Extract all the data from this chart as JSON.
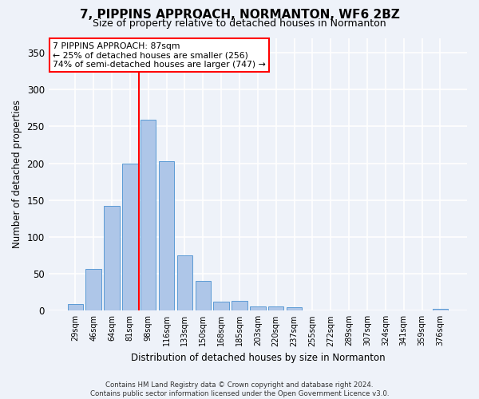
{
  "title": "7, PIPPINS APPROACH, NORMANTON, WF6 2BZ",
  "subtitle": "Size of property relative to detached houses in Normanton",
  "xlabel": "Distribution of detached houses by size in Normanton",
  "ylabel": "Number of detached properties",
  "categories": [
    "29sqm",
    "46sqm",
    "64sqm",
    "81sqm",
    "98sqm",
    "116sqm",
    "133sqm",
    "150sqm",
    "168sqm",
    "185sqm",
    "203sqm",
    "220sqm",
    "237sqm",
    "255sqm",
    "272sqm",
    "289sqm",
    "307sqm",
    "324sqm",
    "341sqm",
    "359sqm",
    "376sqm"
  ],
  "values": [
    9,
    57,
    142,
    199,
    259,
    203,
    75,
    40,
    12,
    13,
    6,
    6,
    5,
    0,
    0,
    0,
    0,
    0,
    0,
    0,
    3
  ],
  "bar_color": "#aec6e8",
  "bar_edge_color": "#5b9bd5",
  "vline_index": 3,
  "vline_color": "red",
  "annotation_title": "7 PIPPINS APPROACH: 87sqm",
  "annotation_line1": "← 25% of detached houses are smaller (256)",
  "annotation_line2": "74% of semi-detached houses are larger (747) →",
  "annotation_box_color": "white",
  "annotation_box_edge": "red",
  "footer_line1": "Contains HM Land Registry data © Crown copyright and database right 2024.",
  "footer_line2": "Contains public sector information licensed under the Open Government Licence v3.0.",
  "bg_color": "#eef2f9",
  "grid_color": "white",
  "ylim": [
    0,
    370
  ],
  "yticks": [
    0,
    50,
    100,
    150,
    200,
    250,
    300,
    350
  ]
}
